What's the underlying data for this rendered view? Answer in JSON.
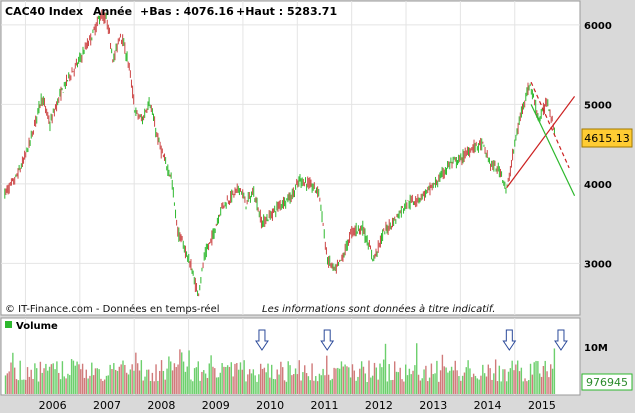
{
  "header": {
    "index": "CAC40 Index",
    "period": "Année",
    "low_label": "+Bas : 4076.16",
    "high_label": "+Haut : 5283.71"
  },
  "footer": {
    "source": "© IT-Finance.com - Données en temps-réel",
    "disclaimer": "Les informations sont données à titre indicatif."
  },
  "chart_data": [
    {
      "type": "candlestick",
      "title": "CAC40 Index",
      "period": "Année",
      "y_ticks": [
        3000,
        4000,
        5000,
        6000
      ],
      "ylim": [
        2350,
        6300
      ],
      "last_price": "4615.13",
      "x_ticks": [
        "2006",
        "2007",
        "2008",
        "2009",
        "2010",
        "2011",
        "2012",
        "2013",
        "2014",
        "2015"
      ],
      "series_path": [
        [
          2005.62,
          3880
        ],
        [
          2005.8,
          4040
        ],
        [
          2005.95,
          4260
        ],
        [
          2006.1,
          4560
        ],
        [
          2006.3,
          5100
        ],
        [
          2006.45,
          4750
        ],
        [
          2006.6,
          5050
        ],
        [
          2006.8,
          5350
        ],
        [
          2006.95,
          5500
        ],
        [
          2007.1,
          5700
        ],
        [
          2007.25,
          5900
        ],
        [
          2007.38,
          6120
        ],
        [
          2007.5,
          6050
        ],
        [
          2007.62,
          5550
        ],
        [
          2007.75,
          5900
        ],
        [
          2007.9,
          5500
        ],
        [
          2008.02,
          4900
        ],
        [
          2008.15,
          4800
        ],
        [
          2008.28,
          5050
        ],
        [
          2008.42,
          4600
        ],
        [
          2008.55,
          4300
        ],
        [
          2008.68,
          4100
        ],
        [
          2008.8,
          3400
        ],
        [
          2008.92,
          3200
        ],
        [
          2009.05,
          2950
        ],
        [
          2009.17,
          2600
        ],
        [
          2009.3,
          3100
        ],
        [
          2009.45,
          3350
        ],
        [
          2009.6,
          3700
        ],
        [
          2009.8,
          3850
        ],
        [
          2009.95,
          3950
        ],
        [
          2010.05,
          3750
        ],
        [
          2010.2,
          3900
        ],
        [
          2010.35,
          3500
        ],
        [
          2010.5,
          3600
        ],
        [
          2010.7,
          3750
        ],
        [
          2010.9,
          3850
        ],
        [
          2011.05,
          4050
        ],
        [
          2011.2,
          4000
        ],
        [
          2011.4,
          3900
        ],
        [
          2011.55,
          3050
        ],
        [
          2011.7,
          2900
        ],
        [
          2011.85,
          3100
        ],
        [
          2012.0,
          3400
        ],
        [
          2012.2,
          3450
        ],
        [
          2012.4,
          3050
        ],
        [
          2012.6,
          3400
        ],
        [
          2012.8,
          3550
        ],
        [
          2013.0,
          3750
        ],
        [
          2013.2,
          3800
        ],
        [
          2013.4,
          3900
        ],
        [
          2013.6,
          4050
        ],
        [
          2013.8,
          4250
        ],
        [
          2014.0,
          4300
        ],
        [
          2014.2,
          4450
        ],
        [
          2014.4,
          4500
        ],
        [
          2014.55,
          4250
        ],
        [
          2014.75,
          4150
        ],
        [
          2014.85,
          3900
        ],
        [
          2015.0,
          4500
        ],
        [
          2015.15,
          5000
        ],
        [
          2015.28,
          5250
        ],
        [
          2015.45,
          4800
        ],
        [
          2015.6,
          5050
        ],
        [
          2015.75,
          4615
        ]
      ],
      "trendlines": [
        {
          "from": [
            2014.85,
            3950
          ],
          "to": [
            2016.1,
            5100
          ],
          "color": "#cc2222",
          "style": "solid"
        },
        {
          "from": [
            2015.3,
            5280
          ],
          "to": [
            2016.0,
            4200
          ],
          "color": "#cc2222",
          "style": "dashed"
        },
        {
          "from": [
            2015.3,
            5000
          ],
          "to": [
            2016.1,
            3850
          ],
          "color": "#2db82d",
          "style": "solid"
        }
      ]
    },
    {
      "type": "bar",
      "title": "Volume",
      "y_ticks_label": "10M",
      "last_value": "976945",
      "markers": [
        2010.35,
        2011.55,
        2014.9,
        2015.85
      ]
    }
  ],
  "colors": {
    "background": "#d9d9d9",
    "plot_bg": "#ffffff",
    "grid": "#e4e4e4",
    "up": "#2db82d",
    "down": "#cc4444",
    "price_tag_bg": "#ffcc33",
    "volume_tag_bg": "#ffffff"
  }
}
